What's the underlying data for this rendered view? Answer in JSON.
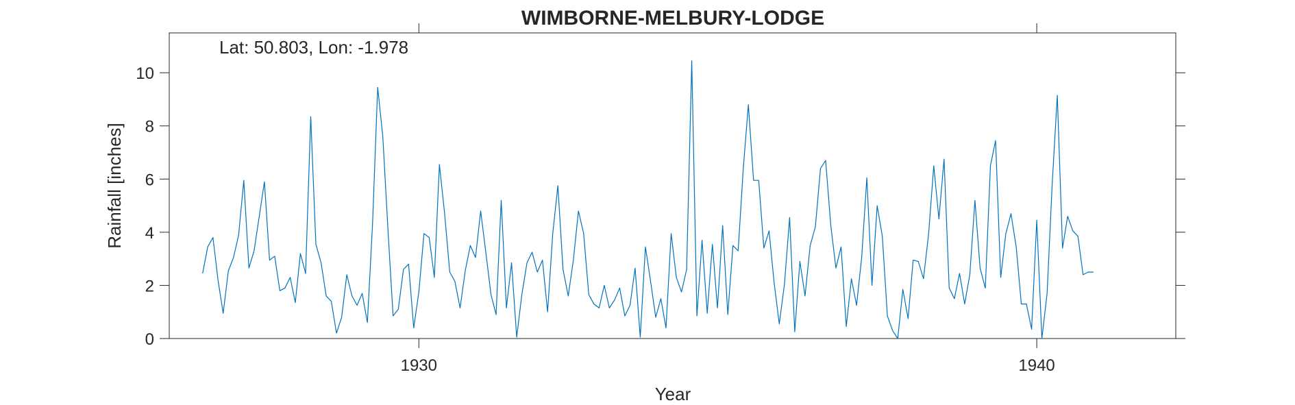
{
  "chart_data": {
    "type": "line",
    "title": "WIMBORNE-MELBURY-LODGE",
    "xlabel": "Year",
    "ylabel": "Rainfall [inches]",
    "annotation": "Lat: 50.803, Lon: -1.978",
    "xlim": [
      1925.96,
      1942.25
    ],
    "ylim": [
      0,
      11.5
    ],
    "xticks": [
      1930,
      1940
    ],
    "yticks": [
      0,
      2,
      4,
      6,
      8,
      10
    ],
    "grid": false,
    "line_color": "#0072BD",
    "series": [
      {
        "x": [
          1926.5,
          1926.583,
          1926.667,
          1926.75,
          1926.833,
          1926.917,
          1927.0,
          1927.083,
          1927.167,
          1927.25,
          1927.333,
          1927.417,
          1927.5,
          1927.583,
          1927.667,
          1927.75,
          1927.833,
          1927.917,
          1928.0,
          1928.083,
          1928.167,
          1928.25,
          1928.333,
          1928.417,
          1928.5,
          1928.583,
          1928.667,
          1928.75,
          1928.833,
          1928.917,
          1929.0,
          1929.083,
          1929.167,
          1929.25,
          1929.333,
          1929.417,
          1929.5,
          1929.583,
          1929.667,
          1929.75,
          1929.833,
          1929.917,
          1930.0,
          1930.083,
          1930.167,
          1930.25,
          1930.333,
          1930.417,
          1930.5,
          1930.583,
          1930.667,
          1930.75,
          1930.833,
          1930.917,
          1931.0,
          1931.083,
          1931.167,
          1931.25,
          1931.333,
          1931.417,
          1931.5,
          1931.583,
          1931.667,
          1931.75,
          1931.833,
          1931.917,
          1932.0,
          1932.083,
          1932.167,
          1932.25,
          1932.333,
          1932.417,
          1932.5,
          1932.583,
          1932.667,
          1932.75,
          1932.833,
          1932.917,
          1933.0,
          1933.083,
          1933.167,
          1933.25,
          1933.333,
          1933.417,
          1933.5,
          1933.583,
          1933.667,
          1933.75,
          1933.833,
          1933.917,
          1934.0,
          1934.083,
          1934.167,
          1934.25,
          1934.333,
          1934.417,
          1934.5,
          1934.583,
          1934.667,
          1934.75,
          1934.833,
          1934.917,
          1935.0,
          1935.083,
          1935.167,
          1935.25,
          1935.333,
          1935.417,
          1935.5,
          1935.583,
          1935.667,
          1935.75,
          1935.833,
          1935.917,
          1936.0,
          1936.083,
          1936.167,
          1936.25,
          1936.333,
          1936.417,
          1936.5,
          1936.583,
          1936.667,
          1936.75,
          1936.833,
          1936.917,
          1937.0,
          1937.083,
          1937.167,
          1937.25,
          1937.333,
          1937.417,
          1937.5,
          1937.583,
          1937.667,
          1937.75,
          1937.833,
          1937.917,
          1938.0,
          1938.083,
          1938.167,
          1938.25,
          1938.333,
          1938.417,
          1938.5,
          1938.583,
          1938.667,
          1938.75,
          1938.833,
          1938.917,
          1939.0,
          1939.083,
          1939.167,
          1939.25,
          1939.333,
          1939.417,
          1939.5,
          1939.583,
          1939.667,
          1939.75,
          1939.833,
          1939.917,
          1940.0,
          1940.083,
          1940.167,
          1940.25,
          1940.333,
          1940.417,
          1940.5,
          1940.583,
          1940.667,
          1940.75,
          1940.833,
          1940.917
        ],
        "y": [
          2.45,
          3.45,
          3.8,
          2.2,
          0.95,
          2.55,
          3.05,
          3.9,
          5.95,
          2.65,
          3.3,
          4.6,
          5.9,
          2.95,
          3.1,
          1.8,
          1.9,
          2.3,
          1.35,
          3.2,
          2.45,
          8.35,
          3.55,
          2.85,
          1.6,
          1.4,
          0.2,
          0.8,
          2.4,
          1.6,
          1.25,
          1.7,
          0.6,
          4.3,
          9.45,
          7.6,
          4.1,
          0.85,
          1.1,
          2.6,
          2.8,
          0.4,
          1.75,
          3.95,
          3.8,
          2.3,
          6.55,
          4.7,
          2.5,
          2.15,
          1.15,
          2.55,
          3.5,
          3.05,
          4.8,
          3.25,
          1.65,
          0.9,
          5.2,
          1.15,
          2.85,
          0.05,
          1.65,
          2.85,
          3.25,
          2.5,
          2.95,
          1.0,
          3.95,
          5.75,
          2.6,
          1.6,
          2.95,
          4.8,
          3.95,
          1.65,
          1.3,
          1.15,
          2.0,
          1.15,
          1.45,
          1.9,
          0.85,
          1.25,
          2.65,
          0.05,
          3.45,
          2.15,
          0.8,
          1.5,
          0.4,
          3.95,
          2.3,
          1.75,
          2.6,
          10.45,
          0.85,
          3.7,
          0.95,
          3.55,
          1.15,
          4.25,
          0.9,
          3.5,
          3.3,
          6.4,
          8.8,
          5.95,
          5.95,
          3.4,
          4.05,
          2.1,
          0.55,
          2.05,
          4.55,
          0.25,
          2.9,
          1.6,
          3.5,
          4.2,
          6.4,
          6.7,
          4.25,
          2.65,
          3.45,
          0.45,
          2.25,
          1.25,
          3.05,
          6.05,
          2.0,
          5.0,
          3.85,
          0.85,
          0.3,
          0.0,
          1.85,
          0.75,
          2.95,
          2.9,
          2.25,
          3.95,
          6.5,
          4.5,
          6.75,
          1.9,
          1.5,
          2.45,
          1.3,
          2.4,
          5.2,
          2.65,
          1.9,
          6.5,
          7.45,
          2.3,
          3.95,
          4.7,
          3.45,
          1.3,
          1.3,
          0.35,
          4.45,
          0.0,
          1.7,
          5.8,
          9.15,
          3.4,
          4.6,
          4.05,
          3.85,
          2.4,
          2.5,
          2.5
        ]
      }
    ]
  }
}
